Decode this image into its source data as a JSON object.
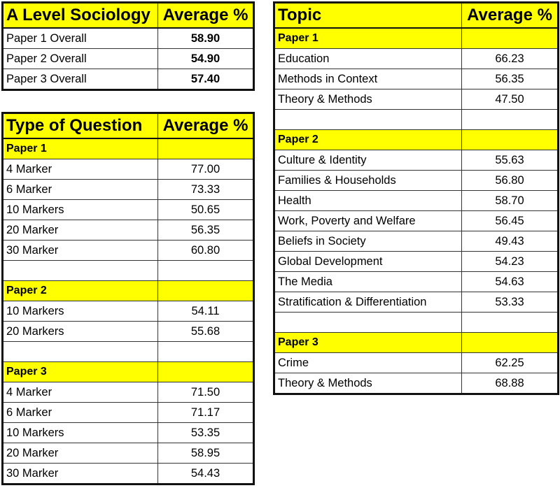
{
  "overall": {
    "header": [
      "A Level Sociology",
      "Average %"
    ],
    "rows": [
      {
        "label": "Paper 1 Overall",
        "value": "58.90"
      },
      {
        "label": "Paper 2 Overall",
        "value": "54.90"
      },
      {
        "label": "Paper 3 Overall",
        "value": "57.40"
      }
    ]
  },
  "question_type": {
    "header": [
      "Type of Question",
      "Average %"
    ],
    "rows": [
      {
        "type": "section",
        "label": "Paper 1"
      },
      {
        "label": "4 Marker",
        "value": "77.00"
      },
      {
        "label": "6 Marker",
        "value": "73.33"
      },
      {
        "label": "10 Markers",
        "value": "50.65"
      },
      {
        "label": "20 Marker",
        "value": "56.35"
      },
      {
        "label": "30 Marker",
        "value": "60.80"
      },
      {
        "type": "blank"
      },
      {
        "type": "section",
        "label": "Paper 2"
      },
      {
        "label": "10 Markers",
        "value": "54.11"
      },
      {
        "label": "20 Markers",
        "value": "55.68"
      },
      {
        "type": "blank"
      },
      {
        "type": "section",
        "label": "Paper 3"
      },
      {
        "label": "4 Marker",
        "value": "71.50"
      },
      {
        "label": "6 Marker",
        "value": "71.17"
      },
      {
        "label": "10 Markers",
        "value": "53.35"
      },
      {
        "label": "20 Marker",
        "value": "58.95"
      },
      {
        "label": "30 Marker",
        "value": "54.43"
      }
    ]
  },
  "topic": {
    "header": [
      "Topic",
      "Average %"
    ],
    "rows": [
      {
        "type": "section",
        "label": "Paper 1"
      },
      {
        "label": "Education",
        "value": "66.23"
      },
      {
        "label": "Methods in Context",
        "value": "56.35"
      },
      {
        "label": "Theory & Methods",
        "value": "47.50"
      },
      {
        "type": "blank"
      },
      {
        "type": "section",
        "label": "Paper 2"
      },
      {
        "label": "Culture & Identity",
        "value": "55.63"
      },
      {
        "label": "Families & Households",
        "value": "56.80"
      },
      {
        "label": "Health",
        "value": "58.70"
      },
      {
        "label": "Work, Poverty and Welfare",
        "value": "56.45"
      },
      {
        "label": "Beliefs in Society",
        "value": "49.43"
      },
      {
        "label": "Global Development",
        "value": "54.23"
      },
      {
        "label": "The Media",
        "value": "54.63"
      },
      {
        "label": "Stratification & Differentiation",
        "value": "53.33"
      },
      {
        "type": "blank"
      },
      {
        "type": "section",
        "label": "Paper 3"
      },
      {
        "label": "Crime",
        "value": "62.25"
      },
      {
        "label": "Theory & Methods",
        "value": "68.88"
      }
    ]
  }
}
